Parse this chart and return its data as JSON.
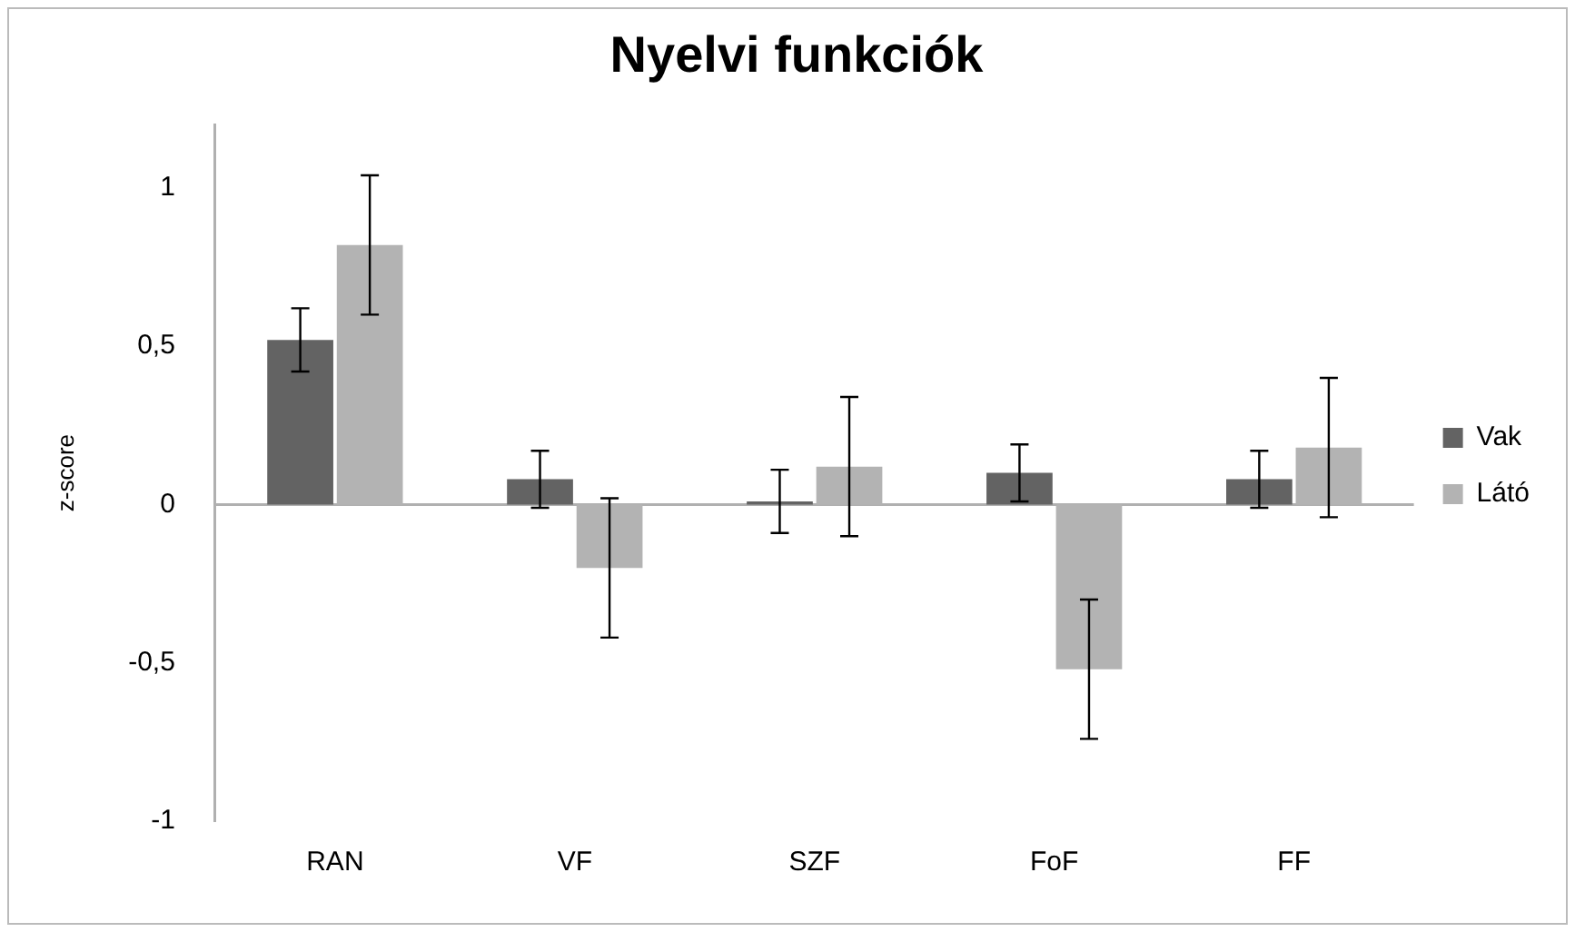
{
  "chart_data": {
    "type": "bar",
    "title": "Nyelvi funkciók",
    "ylabel": "z-score",
    "categories": [
      "RAN",
      "VF",
      "SZF",
      "FoF",
      "FF"
    ],
    "series": [
      {
        "name": "Vak",
        "color": "#636363",
        "values": [
          0.52,
          0.08,
          0.01,
          0.1,
          0.08
        ],
        "errors": [
          0.1,
          0.09,
          0.1,
          0.09,
          0.09
        ]
      },
      {
        "name": "Látó",
        "color": "#b3b3b3",
        "values": [
          0.82,
          -0.2,
          0.12,
          -0.52,
          0.18
        ],
        "errors": [
          0.22,
          0.22,
          0.22,
          0.22,
          0.22
        ]
      }
    ],
    "ylim": [
      -1,
      1.2
    ],
    "yticks": [
      {
        "value": -1,
        "label": "-1"
      },
      {
        "value": -0.5,
        "label": "-0,5"
      },
      {
        "value": 0,
        "label": "0"
      },
      {
        "value": 0.5,
        "label": "0,5"
      },
      {
        "value": 1,
        "label": "1"
      }
    ],
    "legend": "right"
  }
}
